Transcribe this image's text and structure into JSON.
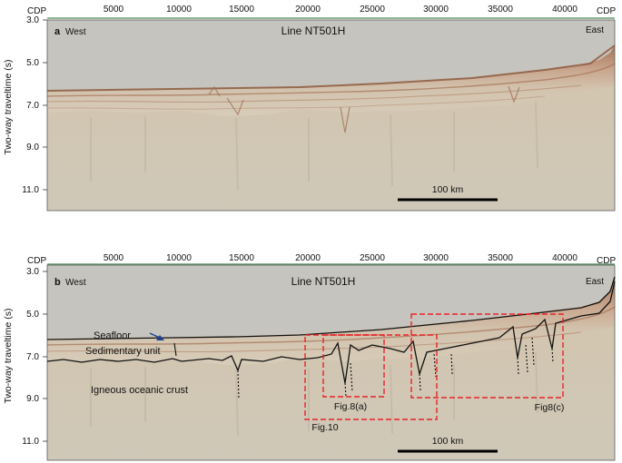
{
  "panels": [
    {
      "id": "a",
      "letter": "a",
      "title": "Line NT501H",
      "left_label": "West",
      "right_label": "East",
      "cdp_label_left": "CDP",
      "cdp_label_right": "CDP",
      "cdp_ticks": [
        "5000",
        "10000",
        "15000",
        "20000",
        "25000",
        "30000",
        "35000",
        "40000"
      ],
      "y_ticks": [
        "3.0",
        "5.0",
        "7.0",
        "9.0",
        "11.0"
      ],
      "ylabel": "Two-way traveltime (s)",
      "scale_label": "100 km"
    },
    {
      "id": "b",
      "letter": "b",
      "title": "Line NT501H",
      "left_label": "West",
      "right_label": "East",
      "cdp_label_left": "CDP",
      "cdp_label_right": "CDP",
      "cdp_ticks": [
        "5000",
        "10000",
        "15000",
        "20000",
        "25000",
        "30000",
        "35000",
        "40000"
      ],
      "y_ticks": [
        "3.0",
        "5.0",
        "7.0",
        "9.0",
        "11.0"
      ],
      "ylabel": "Two-way traveltime (s)",
      "scale_label": "100 km",
      "annotations": {
        "seafloor": "Seafloor",
        "sedimentary": "Sedimentary unit",
        "crust": "Igneous oceanic crust",
        "fig8a": "Fig.8(a)",
        "fig10": "Fig.10",
        "fig8c": "Fig8(c)"
      }
    }
  ],
  "colors": {
    "background_gray": "#c9c7c1",
    "reflector_brown": "#9a6a4c",
    "interpretation_red": "#e8232a",
    "seafloor_arrow": "#1f3f8f"
  }
}
